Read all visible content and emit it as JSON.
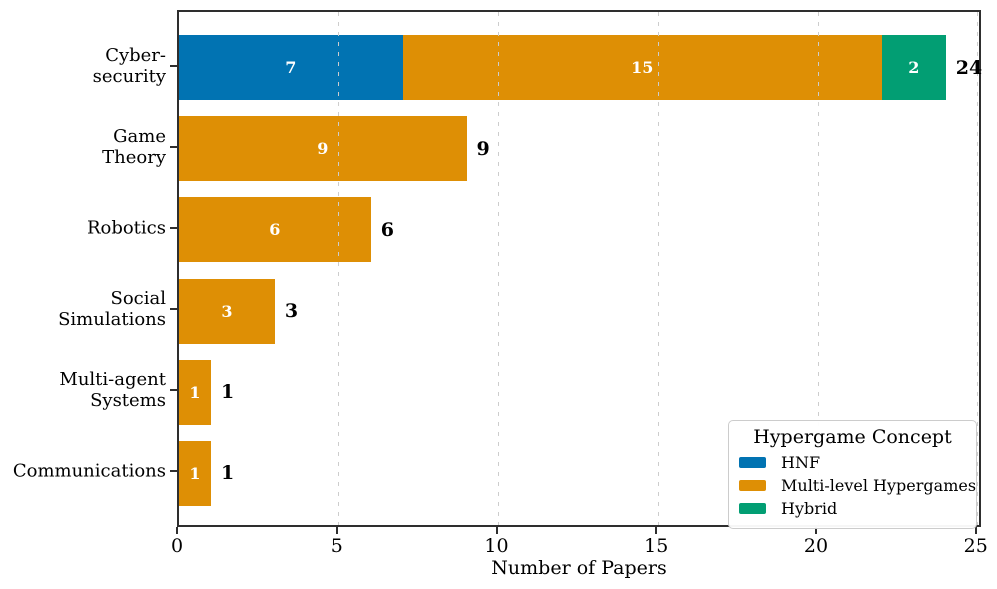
{
  "chart_data": {
    "type": "bar",
    "orientation": "horizontal",
    "stacked": true,
    "title": "",
    "xlabel": "Number of Papers",
    "ylabel": "",
    "categories": [
      "Cyber-\nsecurity",
      "Game\nTheory",
      "Robotics",
      "Social\nSimulations",
      "Multi-agent\nSystems",
      "Communications"
    ],
    "series": [
      {
        "name": "HNF",
        "color": "#0173B2",
        "values": [
          7,
          0,
          0,
          0,
          0,
          0
        ]
      },
      {
        "name": "Multi-level Hypergames",
        "color": "#DE8F05",
        "values": [
          15,
          9,
          6,
          3,
          1,
          1
        ]
      },
      {
        "name": "Hybrid",
        "color": "#029E73",
        "values": [
          2,
          0,
          0,
          0,
          0,
          0
        ]
      }
    ],
    "totals": [
      24,
      9,
      6,
      3,
      1,
      1
    ],
    "x_ticks": [
      0,
      5,
      10,
      15,
      20,
      25
    ],
    "xlim": [
      0,
      25.2
    ],
    "grid": "vertical dashed gridlines drawn over bars",
    "legend": {
      "title": "Hypergame Concept",
      "position": "lower right",
      "entries": [
        "HNF",
        "Multi-level Hypergames",
        "Hybrid"
      ]
    }
  },
  "style": {
    "bar_value_label_color": "#ffffff",
    "total_label_color": "#000000",
    "grid_color": "#cdcdcd",
    "spine_color": "#2e2e2e",
    "background": "#ffffff"
  }
}
